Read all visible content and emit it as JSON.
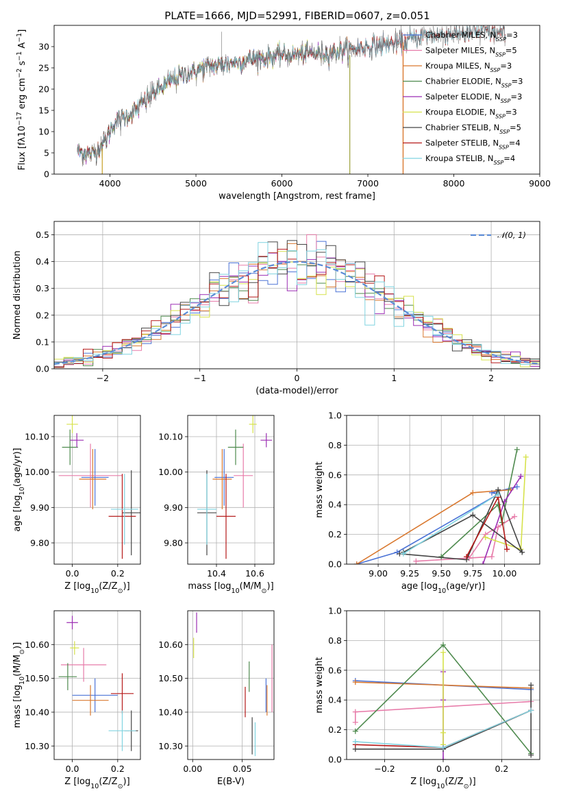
{
  "figure": {
    "title": "PLATE=1666, MJD=52991, FIBERID=0607, z=0.051"
  },
  "colors": {
    "Chabrier MILES": "#4a72d6",
    "Salpeter MILES": "#e77ba9",
    "Kroupa MILES": "#d9782f",
    "Chabrier ELODIE": "#4e8a4e",
    "Salpeter ELODIE": "#9b2cb3",
    "Kroupa ELODIE": "#d6e24a",
    "Chabrier STELIB": "#444444",
    "Salpeter STELIB": "#b51818",
    "Kroupa STELIB": "#7fd3e0"
  },
  "chart_data": [
    {
      "id": "spectrum",
      "type": "line",
      "title": "PLATE=1666, MJD=52991, FIBERID=0607, z=0.051",
      "xlabel": "wavelength [Angstrom, rest frame]",
      "ylabel": "Flux [fλ10⁻¹⁷ erg cm⁻² s⁻¹ A⁻¹]",
      "xlim": [
        3350,
        9000
      ],
      "ylim": [
        0,
        35
      ],
      "xticks": [
        4000,
        5000,
        6000,
        7000,
        8000,
        9000
      ],
      "yticks": [
        0,
        5,
        10,
        15,
        20,
        25,
        30
      ],
      "grid": false,
      "legend_position": "right",
      "continuum_anchors": [
        [
          3620,
          5.5
        ],
        [
          3800,
          4.5
        ],
        [
          3950,
          8
        ],
        [
          4050,
          12
        ],
        [
          4300,
          15
        ],
        [
          4500,
          19
        ],
        [
          4800,
          23
        ],
        [
          5100,
          25
        ],
        [
          5500,
          26.5
        ],
        [
          6000,
          28
        ],
        [
          6500,
          28.5
        ],
        [
          7000,
          30
        ],
        [
          7400,
          31
        ],
        [
          7600,
          32.5
        ],
        [
          8000,
          33
        ],
        [
          8400,
          33.5
        ],
        [
          8600,
          33
        ]
      ],
      "series_extent": [
        {
          "name": "Chabrier MILES",
          "xmax": 7400
        },
        {
          "name": "Salpeter MILES",
          "xmax": 7400
        },
        {
          "name": "Kroupa MILES",
          "xmax": 7400
        },
        {
          "name": "Chabrier ELODIE",
          "xmax": 6800
        },
        {
          "name": "Salpeter ELODIE",
          "xmax": 6800
        },
        {
          "name": "Kroupa ELODIE",
          "xmax": 6800
        },
        {
          "name": "Chabrier STELIB",
          "xmax": 8600
        },
        {
          "name": "Salpeter STELIB",
          "xmax": 8600
        },
        {
          "name": "Kroupa STELIB",
          "xmax": 8600
        }
      ],
      "legend": [
        {
          "name": "Chabrier MILES",
          "label": "Chabrier MILES, N",
          "sub": "SSP",
          "suffix": "=3"
        },
        {
          "name": "Salpeter MILES",
          "label": "Salpeter MILES, N",
          "sub": "SSP",
          "suffix": "=5"
        },
        {
          "name": "Kroupa MILES",
          "label": "Kroupa MILES, N",
          "sub": "SSP",
          "suffix": "=3"
        },
        {
          "name": "Chabrier ELODIE",
          "label": "Chabrier ELODIE, N",
          "sub": "SSP",
          "suffix": "=3"
        },
        {
          "name": "Salpeter ELODIE",
          "label": "Salpeter ELODIE, N",
          "sub": "SSP",
          "suffix": "=3"
        },
        {
          "name": "Kroupa ELODIE",
          "label": "Kroupa ELODIE, N",
          "sub": "SSP",
          "suffix": "=3"
        },
        {
          "name": "Chabrier STELIB",
          "label": "Chabrier STELIB, N",
          "sub": "SSP",
          "suffix": "=5"
        },
        {
          "name": "Salpeter STELIB",
          "label": "Salpeter STELIB, N",
          "sub": "SSP",
          "suffix": "=4"
        },
        {
          "name": "Kroupa STELIB",
          "label": "Kroupa STELIB, N",
          "sub": "SSP",
          "suffix": "=4"
        }
      ]
    },
    {
      "id": "residuals",
      "type": "area",
      "xlabel": "(data-model)/error",
      "ylabel": "Normed distribution",
      "xlim": [
        -2.5,
        2.5
      ],
      "ylim": [
        0,
        0.55
      ],
      "xticks": [
        -2,
        -1,
        0,
        1,
        2
      ],
      "yticks": [
        0,
        0.1,
        0.2,
        0.3,
        0.4,
        0.5
      ],
      "grid": true,
      "legend_position": "top-right",
      "legend": [
        {
          "label": "𝒩(0, 1)"
        }
      ],
      "reference_curve": {
        "name": "N(0,1)",
        "mean": 0,
        "sigma": 1,
        "style": "dashed"
      },
      "bin_width": 0.1
    },
    {
      "id": "age-vs-Z",
      "type": "scatter",
      "xlabel": "Z [log₁₀(Z/Z⊙)]",
      "ylabel": "age  [log₁₀(age/yr)]",
      "xlim": [
        -0.08,
        0.3
      ],
      "ylim": [
        9.74,
        10.16
      ],
      "xticks": [
        0.0,
        0.2
      ],
      "yticks": [
        9.8,
        9.9,
        10.0,
        10.1
      ],
      "grid": true,
      "points": [
        {
          "series": "Chabrier MILES",
          "x": 0.1,
          "y": 9.985,
          "xerr": 0.06,
          "yerr": 0.08
        },
        {
          "series": "Salpeter MILES",
          "x": 0.08,
          "y": 9.99,
          "xerr": 0.14,
          "yerr": 0.09
        },
        {
          "series": "Kroupa MILES",
          "x": 0.09,
          "y": 9.98,
          "xerr": 0.06,
          "yerr": 0.085
        },
        {
          "series": "Chabrier ELODIE",
          "x": -0.01,
          "y": 10.07,
          "xerr": 0.035,
          "yerr": 0.05
        },
        {
          "series": "Salpeter ELODIE",
          "x": 0.02,
          "y": 10.09,
          "xerr": 0.03,
          "yerr": 0.02
        },
        {
          "series": "Kroupa ELODIE",
          "x": 0.0,
          "y": 10.135,
          "xerr": 0.025,
          "yerr": 0.025
        },
        {
          "series": "Chabrier STELIB",
          "x": 0.26,
          "y": 9.885,
          "xerr": 0.04,
          "yerr": 0.12
        },
        {
          "series": "Salpeter STELIB",
          "x": 0.22,
          "y": 9.875,
          "xerr": 0.06,
          "yerr": 0.12
        },
        {
          "series": "Kroupa STELIB",
          "x": 0.23,
          "y": 9.895,
          "xerr": 0.06,
          "yerr": 0.1
        }
      ]
    },
    {
      "id": "age-vs-mass",
      "type": "scatter",
      "xlabel": "mass [log₁₀(M/M⊙)]",
      "ylabel": "",
      "xlim": [
        10.25,
        10.7
      ],
      "ylim": [
        9.74,
        10.16
      ],
      "xticks": [
        10.4,
        10.6
      ],
      "yticks": [
        9.8,
        9.9,
        10.0,
        10.1
      ],
      "grid": true,
      "points": [
        {
          "series": "Chabrier MILES",
          "x": 10.44,
          "y": 9.985,
          "xerr": 0.05,
          "yerr": 0.08
        },
        {
          "series": "Salpeter MILES",
          "x": 10.54,
          "y": 9.99,
          "xerr": 0.05,
          "yerr": 0.09
        },
        {
          "series": "Kroupa MILES",
          "x": 10.43,
          "y": 9.98,
          "xerr": 0.05,
          "yerr": 0.085
        },
        {
          "series": "Chabrier ELODIE",
          "x": 10.5,
          "y": 10.07,
          "xerr": 0.04,
          "yerr": 0.05
        },
        {
          "series": "Salpeter ELODIE",
          "x": 10.66,
          "y": 10.09,
          "xerr": 0.03,
          "yerr": 0.02
        },
        {
          "series": "Kroupa ELODIE",
          "x": 10.59,
          "y": 10.135,
          "xerr": 0.02,
          "yerr": 0.025
        },
        {
          "series": "Chabrier STELIB",
          "x": 10.35,
          "y": 9.885,
          "xerr": 0.05,
          "yerr": 0.12
        },
        {
          "series": "Salpeter STELIB",
          "x": 10.45,
          "y": 9.875,
          "xerr": 0.05,
          "yerr": 0.12
        },
        {
          "series": "Kroupa STELIB",
          "x": 10.35,
          "y": 9.895,
          "xerr": 0.05,
          "yerr": 0.1
        }
      ]
    },
    {
      "id": "mass-weight-vs-age",
      "type": "line",
      "xlabel": "age  [log₁₀(age/yr)]",
      "ylabel": "mass weight",
      "xlim": [
        8.75,
        10.28
      ],
      "ylim": [
        0,
        1.0
      ],
      "xticks": [
        9.0,
        9.25,
        9.5,
        9.75,
        10.0
      ],
      "yticks": [
        0.0,
        0.2,
        0.4,
        0.6,
        0.8,
        1.0
      ],
      "grid": true,
      "series": [
        {
          "name": "Chabrier MILES",
          "points": [
            [
              8.83,
              0.0
            ],
            [
              9.15,
              0.08
            ],
            [
              9.95,
              0.47
            ],
            [
              9.9,
              0.48
            ],
            [
              10.1,
              0.52
            ]
          ]
        },
        {
          "name": "Salpeter MILES",
          "points": [
            [
              9.3,
              0.02
            ],
            [
              9.9,
              0.05
            ],
            [
              9.95,
              0.25
            ],
            [
              10.08,
              0.32
            ],
            [
              9.85,
              0.2
            ],
            [
              9.72,
              0.04
            ]
          ]
        },
        {
          "name": "Kroupa MILES",
          "points": [
            [
              8.83,
              0.0
            ],
            [
              9.75,
              0.48
            ],
            [
              10.05,
              0.5
            ]
          ]
        },
        {
          "name": "Chabrier ELODIE",
          "points": [
            [
              9.5,
              0.05
            ],
            [
              9.95,
              0.4
            ],
            [
              9.98,
              0.28
            ],
            [
              10.1,
              0.77
            ]
          ]
        },
        {
          "name": "Salpeter ELODIE",
          "points": [
            [
              9.83,
              0.0
            ],
            [
              10.0,
              0.42
            ],
            [
              10.13,
              0.59
            ]
          ]
        },
        {
          "name": "Kroupa ELODIE",
          "points": [
            [
              9.85,
              0.18
            ],
            [
              10.13,
              0.1
            ],
            [
              10.17,
              0.72
            ]
          ]
        },
        {
          "name": "Chabrier STELIB",
          "points": [
            [
              9.17,
              0.07
            ],
            [
              9.7,
              0.03
            ],
            [
              9.95,
              0.5
            ],
            [
              10.14,
              0.08
            ],
            [
              9.75,
              0.33
            ],
            [
              9.2,
              0.08
            ]
          ]
        },
        {
          "name": "Salpeter STELIB",
          "points": [
            [
              9.7,
              0.05
            ],
            [
              9.95,
              0.45
            ],
            [
              10.02,
              0.1
            ]
          ]
        },
        {
          "name": "Kroupa STELIB",
          "points": [
            [
              9.2,
              0.07
            ],
            [
              9.95,
              0.47
            ]
          ]
        }
      ]
    },
    {
      "id": "mass-vs-Z",
      "type": "scatter",
      "xlabel": "Z [log₁₀(Z/Z⊙)]",
      "ylabel": "mass [log₁₀(M/M⊙)]",
      "xlim": [
        -0.08,
        0.3
      ],
      "ylim": [
        10.26,
        10.7
      ],
      "xticks": [
        0.0,
        0.2
      ],
      "yticks": [
        10.3,
        10.4,
        10.5,
        10.6
      ],
      "grid": true,
      "points": [
        {
          "series": "Chabrier MILES",
          "x": 0.1,
          "y": 10.45,
          "xerr": 0.1,
          "yerr": 0.05
        },
        {
          "series": "Salpeter MILES",
          "x": 0.05,
          "y": 10.54,
          "xerr": 0.1,
          "yerr": 0.05
        },
        {
          "series": "Kroupa MILES",
          "x": 0.08,
          "y": 10.435,
          "xerr": 0.08,
          "yerr": 0.045
        },
        {
          "series": "Chabrier ELODIE",
          "x": -0.02,
          "y": 10.505,
          "xerr": 0.04,
          "yerr": 0.04
        },
        {
          "series": "Salpeter ELODIE",
          "x": 0.0,
          "y": 10.665,
          "xerr": 0.025,
          "yerr": 0.02
        },
        {
          "series": "Kroupa ELODIE",
          "x": 0.01,
          "y": 10.59,
          "xerr": 0.02,
          "yerr": 0.02
        },
        {
          "series": "Chabrier STELIB",
          "x": 0.26,
          "y": 10.345,
          "xerr": 0.03,
          "yerr": 0.06
        },
        {
          "series": "Salpeter STELIB",
          "x": 0.22,
          "y": 10.455,
          "xerr": 0.05,
          "yerr": 0.06
        },
        {
          "series": "Kroupa STELIB",
          "x": 0.22,
          "y": 10.345,
          "xerr": 0.06,
          "yerr": 0.06
        }
      ]
    },
    {
      "id": "mass-vs-EBV",
      "type": "scatter",
      "xlabel": "E(B-V)",
      "ylabel": "",
      "xlim": [
        -0.005,
        0.082
      ],
      "ylim": [
        10.26,
        10.7
      ],
      "xticks": [
        0.0,
        0.05
      ],
      "yticks": [
        10.3,
        10.4,
        10.5,
        10.6
      ],
      "grid": true,
      "points": [
        {
          "series": "Chabrier MILES",
          "x": 0.074,
          "y": 10.45,
          "yerr": 0.05
        },
        {
          "series": "Salpeter MILES",
          "x": 0.08,
          "y": 10.5,
          "yerr": 0.1
        },
        {
          "series": "Kroupa MILES",
          "x": 0.075,
          "y": 10.435,
          "yerr": 0.045
        },
        {
          "series": "Chabrier ELODIE",
          "x": 0.057,
          "y": 10.505,
          "yerr": 0.045
        },
        {
          "series": "Salpeter ELODIE",
          "x": 0.004,
          "y": 10.665,
          "yerr": 0.03
        },
        {
          "series": "Kroupa ELODIE",
          "x": 0.001,
          "y": 10.59,
          "yerr": 0.03
        },
        {
          "series": "Chabrier STELIB",
          "x": 0.06,
          "y": 10.33,
          "yerr": 0.055
        },
        {
          "series": "Salpeter STELIB",
          "x": 0.053,
          "y": 10.43,
          "yerr": 0.045
        },
        {
          "series": "Kroupa STELIB",
          "x": 0.063,
          "y": 10.32,
          "yerr": 0.05
        }
      ]
    },
    {
      "id": "mass-weight-vs-Z",
      "type": "line",
      "xlabel": "Z [log₁₀(Z/Z⊙)]",
      "ylabel": "mass weight",
      "xlim": [
        -0.33,
        0.33
      ],
      "ylim": [
        0,
        1.0
      ],
      "xticks": [
        -0.2,
        0.0,
        0.2
      ],
      "yticks": [
        0.0,
        0.2,
        0.4,
        0.6,
        0.8,
        1.0
      ],
      "grid": true,
      "series": [
        {
          "name": "Chabrier MILES",
          "points": [
            [
              -0.3,
              0.53
            ],
            [
              0.3,
              0.47
            ]
          ]
        },
        {
          "name": "Salpeter MILES",
          "points": [
            [
              -0.3,
              0.25
            ],
            [
              -0.3,
              0.32
            ],
            [
              0.3,
              0.39
            ],
            [
              0.3,
              0.33
            ]
          ]
        },
        {
          "name": "Kroupa MILES",
          "points": [
            [
              -0.3,
              0.52
            ],
            [
              0.3,
              0.48
            ]
          ]
        },
        {
          "name": "Chabrier ELODIE",
          "points": [
            [
              -0.3,
              0.19
            ],
            [
              0.0,
              0.77
            ],
            [
              0.3,
              0.04
            ]
          ]
        },
        {
          "name": "Salpeter ELODIE",
          "points": [
            [
              0.0,
              0.0
            ],
            [
              0.0,
              0.59
            ],
            [
              0.0,
              0.4
            ]
          ]
        },
        {
          "name": "Kroupa ELODIE",
          "points": [
            [
              0.0,
              0.1
            ],
            [
              0.0,
              0.72
            ],
            [
              0.0,
              0.18
            ]
          ]
        },
        {
          "name": "Chabrier STELIB",
          "points": [
            [
              -0.3,
              0.07
            ],
            [
              0.0,
              0.07
            ],
            [
              0.3,
              0.33
            ],
            [
              0.3,
              0.5
            ],
            [
              0.3,
              0.03
            ]
          ]
        },
        {
          "name": "Salpeter STELIB",
          "points": [
            [
              -0.3,
              0.1
            ],
            [
              0.0,
              0.08
            ],
            [
              0.3,
              0.33
            ]
          ]
        },
        {
          "name": "Kroupa STELIB",
          "points": [
            [
              -0.3,
              0.12
            ],
            [
              0.0,
              0.08
            ],
            [
              0.3,
              0.33
            ]
          ]
        }
      ]
    }
  ]
}
